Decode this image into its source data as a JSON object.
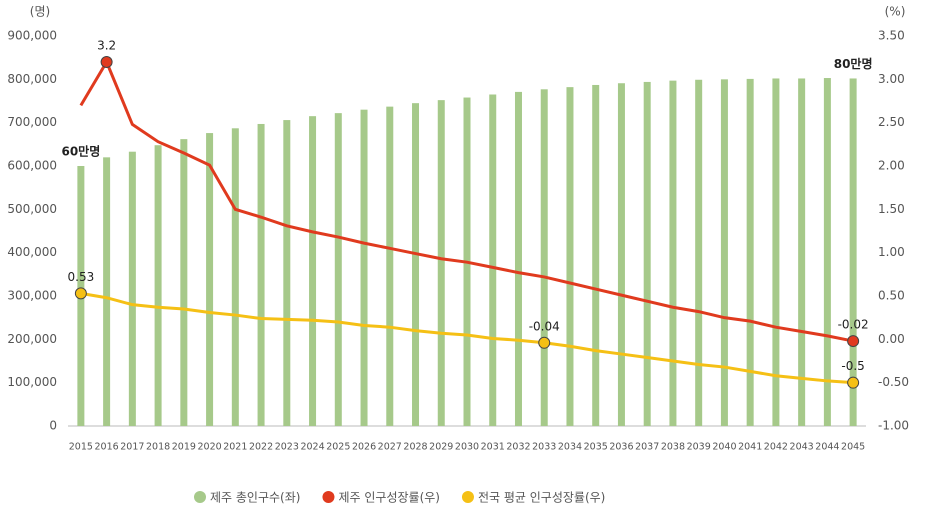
{
  "chart_data": {
    "type": "bar-line",
    "y_label": "(명)",
    "y2_label": "(%)",
    "categories": [
      "2015",
      "2016",
      "2017",
      "2018",
      "2019",
      "2020",
      "2021",
      "2022",
      "2023",
      "2024",
      "2025",
      "2026",
      "2027",
      "2028",
      "2029",
      "2030",
      "2031",
      "2032",
      "2033",
      "2034",
      "2035",
      "2036",
      "2037",
      "2038",
      "2039",
      "2040",
      "2041",
      "2042",
      "2043",
      "2044",
      "2045"
    ],
    "series": [
      {
        "name": "제주 총인구수(좌)",
        "color": "#a6c98a",
        "type": "bar",
        "values": [
          600000,
          620000,
          633000,
          648000,
          662000,
          676000,
          687000,
          697000,
          706000,
          715000,
          722000,
          730000,
          737000,
          745000,
          752000,
          758000,
          765000,
          771000,
          777000,
          782000,
          787000,
          791000,
          794000,
          797000,
          799000,
          800000,
          801000,
          802000,
          802000,
          803000,
          802000
        ],
        "value_labels": [
          "60만명",
          null,
          null,
          null,
          null,
          null,
          null,
          null,
          null,
          null,
          null,
          null,
          null,
          null,
          null,
          null,
          null,
          null,
          null,
          null,
          null,
          null,
          null,
          null,
          null,
          null,
          null,
          null,
          null,
          null,
          "80만명"
        ]
      },
      {
        "name": "제주 인구성장률(우)",
        "color": "#e03a1e",
        "type": "line",
        "axis": "y2",
        "values": [
          2.7,
          3.2,
          2.48,
          2.28,
          2.15,
          2.01,
          1.5,
          1.41,
          1.31,
          1.24,
          1.18,
          1.11,
          1.05,
          0.99,
          0.93,
          0.89,
          0.83,
          0.77,
          0.72,
          0.65,
          0.58,
          0.51,
          0.44,
          0.37,
          0.32,
          0.25,
          0.21,
          0.14,
          0.09,
          0.04,
          -0.02
        ],
        "value_labels": [
          null,
          "3.2",
          null,
          null,
          null,
          null,
          null,
          null,
          null,
          null,
          null,
          null,
          null,
          null,
          null,
          null,
          null,
          null,
          null,
          null,
          null,
          null,
          null,
          null,
          null,
          null,
          null,
          null,
          null,
          null,
          "-0.02"
        ]
      },
      {
        "name": "전국 평균 인구성장률(우)",
        "color": "#f5c015",
        "type": "line",
        "axis": "y2",
        "values": [
          0.53,
          0.48,
          0.4,
          0.37,
          0.35,
          0.31,
          0.28,
          0.24,
          0.23,
          0.22,
          0.2,
          0.16,
          0.14,
          0.1,
          0.07,
          0.05,
          0.01,
          -0.01,
          -0.04,
          -0.08,
          -0.13,
          -0.17,
          -0.21,
          -0.25,
          -0.29,
          -0.32,
          -0.37,
          -0.42,
          -0.45,
          -0.48,
          -0.5
        ],
        "value_labels": [
          "0.53",
          null,
          null,
          null,
          null,
          null,
          null,
          null,
          null,
          null,
          null,
          null,
          null,
          null,
          null,
          null,
          null,
          null,
          "-0.04",
          null,
          null,
          null,
          null,
          null,
          null,
          null,
          null,
          null,
          null,
          null,
          "-0.5"
        ]
      }
    ],
    "ylim": [
      0,
      900000
    ],
    "yticks": [
      0,
      {
        "value": 100000,
        "label": "100,000"
      },
      {
        "value": 200000,
        "label": "200,000"
      },
      {
        "value": 300000,
        "label": "300,000"
      },
      {
        "value": 400000,
        "label": "400,000"
      },
      {
        "value": 500000,
        "label": "500,000"
      },
      {
        "value": 600000,
        "label": "600,000"
      },
      {
        "value": 700000,
        "label": "700,000"
      },
      {
        "value": 800000,
        "label": "800,000"
      },
      {
        "value": 900000,
        "label": "900,000"
      }
    ],
    "y2lim": [
      -1.0,
      3.5
    ],
    "y2ticks": [
      {
        "value": -1,
        "label": "-1.00"
      },
      {
        "value": -0.5,
        "label": "-0.50"
      },
      {
        "value": 0,
        "label": "0.00"
      },
      {
        "value": 0.5,
        "label": "0.50"
      },
      {
        "value": 1,
        "label": "1.00"
      },
      {
        "value": 1.5,
        "label": "1.50"
      },
      {
        "value": 2,
        "label": "2.00"
      },
      {
        "value": 2.5,
        "label": "2.50"
      },
      {
        "value": 3,
        "label": "3.00"
      },
      {
        "value": 3.5,
        "label": "3.50"
      }
    ],
    "legend": "bottom"
  }
}
